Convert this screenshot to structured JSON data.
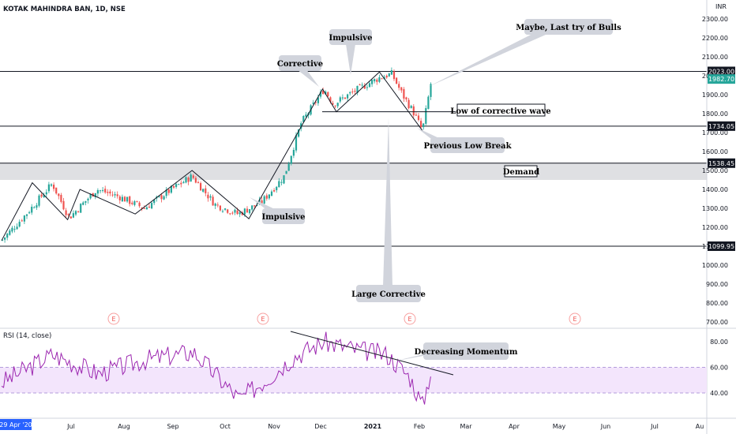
{
  "header": {
    "symbol_title": "KOTAK MAHINDRA BAN, 1D, NSE"
  },
  "currency": "INR",
  "price_axis": {
    "ticks": [
      "2300.00",
      "2200.00",
      "2100.00",
      "2000.00",
      "1900.00",
      "1800.00",
      "1700.00",
      "1600.00",
      "1500.00",
      "1400.00",
      "1300.00",
      "1200.00",
      "1100.00",
      "1000.00",
      "900.00",
      "800.00",
      "700.00"
    ],
    "tick_values": [
      2300,
      2200,
      2100,
      2000,
      1900,
      1800,
      1700,
      1600,
      1500,
      1400,
      1300,
      1200,
      1100,
      1000,
      900,
      800,
      700
    ]
  },
  "levels": [
    {
      "value": 2023,
      "label": "2023.00",
      "style": "dark"
    },
    {
      "value": 1734.05,
      "label": "1734.05",
      "style": "dark"
    },
    {
      "value": 1538.45,
      "label": "1538.45",
      "style": "dark"
    },
    {
      "value": 1099.95,
      "label": "1099.95",
      "style": "dark"
    }
  ],
  "last_price": {
    "value": 1982.7,
    "label": "1982.70",
    "color": "#26a69a"
  },
  "demand_zone": {
    "top": 1538.45,
    "bottom": 1450,
    "label": "Demand"
  },
  "annotations": {
    "corrective": "Corrective",
    "impulsive_top": "Impulsive",
    "impulsive_bottom": "Impulsive",
    "maybe_last_try": "Maybe, Last try of Bulls",
    "low_corrective_wave": "Low of corrective wave",
    "previous_low_break": "Previous Low Break",
    "large_corrective": "Large Corrective",
    "decreasing_momentum": "Decreasing Momentum"
  },
  "earnings_marker": "E",
  "rsi": {
    "title": "RSI (14, close)",
    "ticks": [
      "80.00",
      "60.00",
      "40.00"
    ],
    "tick_values": [
      80,
      60,
      40
    ],
    "band": [
      40,
      60
    ]
  },
  "time_axis": {
    "start_badge": "29 Apr '20",
    "labels": [
      "Jul",
      "Aug",
      "Sep",
      "Oct",
      "Nov",
      "Dec",
      "2021",
      "Jan",
      "Feb",
      "Mar",
      "Apr",
      "May",
      "Jun",
      "Jul",
      "Au"
    ]
  },
  "colors": {
    "up": "#26a69a",
    "down": "#ef5350",
    "rsi_line": "#9c27b0",
    "rsi_band": "#f3e5fc",
    "demand_fill": "#dfe0e3"
  },
  "chart_data": {
    "type": "line",
    "title": "KOTAK MAHINDRA BAN, 1D, NSE",
    "series": [
      {
        "name": "close",
        "x": [
          "2020-04-29",
          "2020-05-15",
          "2020-06-01",
          "2020-06-12",
          "2020-06-30",
          "2020-07-15",
          "2020-07-31",
          "2020-08-14",
          "2020-08-31",
          "2020-09-15",
          "2020-09-30",
          "2020-10-15",
          "2020-10-30",
          "2020-11-10",
          "2020-11-25",
          "2020-12-01",
          "2020-12-15",
          "2020-12-31",
          "2021-01-08",
          "2021-01-15",
          "2021-01-22",
          "2021-01-28",
          "2021-02-03"
        ],
        "values": [
          1130,
          1270,
          1430,
          1250,
          1400,
          1360,
          1300,
          1380,
          1470,
          1320,
          1270,
          1330,
          1470,
          1750,
          1930,
          1850,
          1920,
          1990,
          2010,
          1900,
          1810,
          1710,
          1982.7
        ]
      },
      {
        "name": "RSI (14, close)",
        "x": [
          "2020-04-29",
          "2020-06-01",
          "2020-07-01",
          "2020-08-01",
          "2020-09-01",
          "2020-10-01",
          "2020-10-20",
          "2020-11-05",
          "2020-11-25",
          "2020-12-15",
          "2021-01-05",
          "2021-01-20",
          "2021-01-28",
          "2021-02-03"
        ],
        "values": [
          48,
          70,
          55,
          66,
          72,
          35,
          52,
          68,
          80,
          74,
          70,
          52,
          30,
          60
        ]
      }
    ],
    "ylim": [
      700,
      2350
    ]
  }
}
